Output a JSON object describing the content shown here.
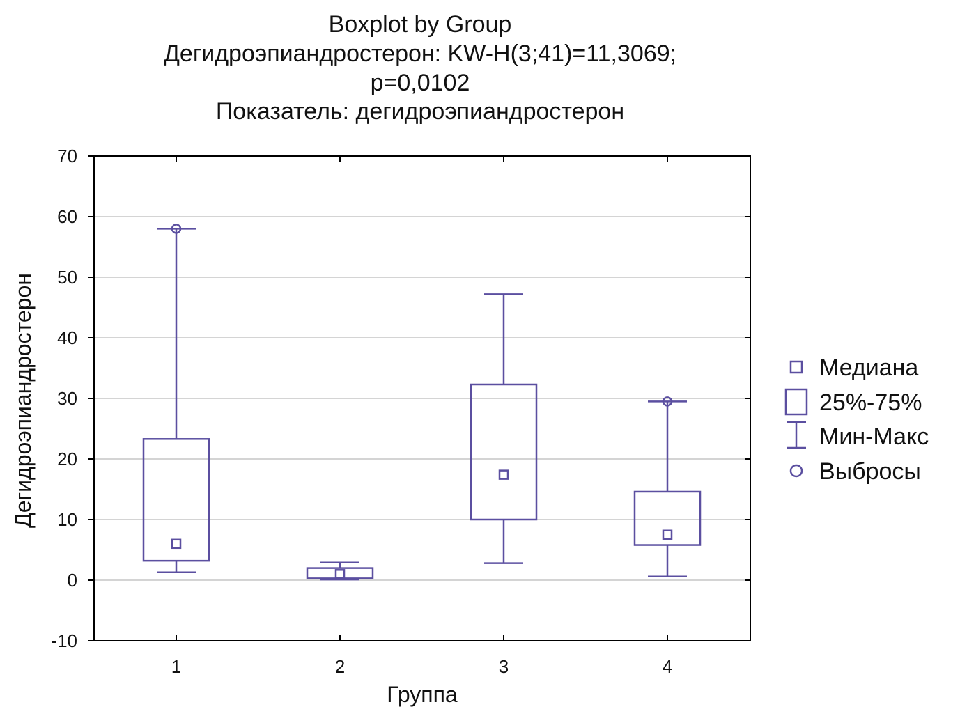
{
  "chart_data": {
    "type": "boxplot",
    "title_lines": [
      "Boxplot by Group",
      "Дегидроэпиандростерон: KW-H(3;41)=11,3069;",
      "p=0,0102",
      "Показатель: дегидроэпиандростерон"
    ],
    "xlabel": "Группа",
    "ylabel": "Дегидроэпиандростерон",
    "ylim": [
      -10,
      70
    ],
    "yticks": [
      -10,
      0,
      10,
      20,
      30,
      40,
      50,
      60,
      70
    ],
    "grid": true,
    "categories": [
      "1",
      "2",
      "3",
      "4"
    ],
    "boxes": [
      {
        "group": "1",
        "median": 6,
        "q1": 3.2,
        "q3": 23.3,
        "min": 1.3,
        "max": 58,
        "outliers": [
          58
        ]
      },
      {
        "group": "2",
        "median": 1.0,
        "q1": 0.3,
        "q3": 2.0,
        "min": 0.1,
        "max": 2.9,
        "outliers": []
      },
      {
        "group": "3",
        "median": 17.4,
        "q1": 10.0,
        "q3": 32.3,
        "min": 2.8,
        "max": 47.2,
        "outliers": []
      },
      {
        "group": "4",
        "median": 7.5,
        "q1": 5.8,
        "q3": 14.6,
        "min": 0.6,
        "max": 29.5,
        "outliers": [
          29.5
        ]
      }
    ],
    "legend": {
      "position": "right",
      "items": [
        {
          "symbol": "median",
          "label": "Медиана"
        },
        {
          "symbol": "box",
          "label": "25%-75%"
        },
        {
          "symbol": "whisker",
          "label": "Мин-Макс"
        },
        {
          "symbol": "outlier",
          "label": "Выбросы"
        }
      ]
    },
    "colors": {
      "series": "#5b4fa0",
      "grid": "#aaaaaa",
      "axis": "#000000"
    }
  }
}
